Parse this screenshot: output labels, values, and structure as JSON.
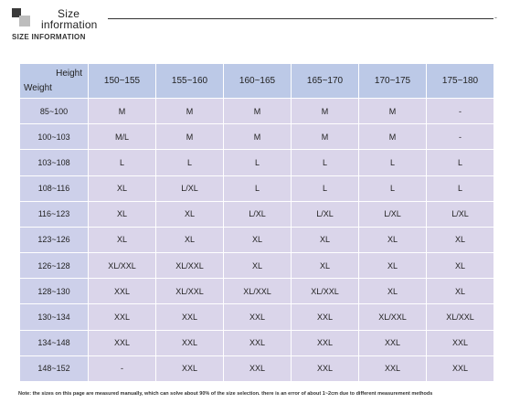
{
  "header": {
    "title_line1": "Size",
    "title_line2": "information",
    "subtitle": "SIZE INFORMATION",
    "mark": "-"
  },
  "table": {
    "corner": {
      "height_label": "Height",
      "weight_label": "Weight"
    },
    "columns": [
      "150~155",
      "155~160",
      "160~165",
      "165~170",
      "170~175",
      "175~180"
    ],
    "rows": [
      {
        "weight": "85~100",
        "sizes": [
          "M",
          "M",
          "M",
          "M",
          "M",
          "-"
        ]
      },
      {
        "weight": "100~103",
        "sizes": [
          "M/L",
          "M",
          "M",
          "M",
          "M",
          "-"
        ]
      },
      {
        "weight": "103~108",
        "sizes": [
          "L",
          "L",
          "L",
          "L",
          "L",
          "L"
        ]
      },
      {
        "weight": "108~116",
        "sizes": [
          "XL",
          "L/XL",
          "L",
          "L",
          "L",
          "L"
        ]
      },
      {
        "weight": "116~123",
        "sizes": [
          "XL",
          "XL",
          "L/XL",
          "L/XL",
          "L/XL",
          "L/XL"
        ]
      },
      {
        "weight": "123~126",
        "sizes": [
          "XL",
          "XL",
          "XL",
          "XL",
          "XL",
          "XL"
        ]
      },
      {
        "weight": "126~128",
        "sizes": [
          "XL/XXL",
          "XL/XXL",
          "XL",
          "XL",
          "XL",
          "XL"
        ]
      },
      {
        "weight": "128~130",
        "sizes": [
          "XXL",
          "XL/XXL",
          "XL/XXL",
          "XL/XXL",
          "XL",
          "XL"
        ]
      },
      {
        "weight": "130~134",
        "sizes": [
          "XXL",
          "XXL",
          "XXL",
          "XXL",
          "XL/XXL",
          "XL/XXL"
        ]
      },
      {
        "weight": "134~148",
        "sizes": [
          "XXL",
          "XXL",
          "XXL",
          "XXL",
          "XXL",
          "XXL"
        ]
      },
      {
        "weight": "148~152",
        "sizes": [
          "-",
          "XXL",
          "XXL",
          "XXL",
          "XXL",
          "XXL"
        ]
      }
    ]
  },
  "note": "Note: the sizes on this page are measured manually, which can solve about 90% of the size selection. there is an error of about 1~2cm due to different measurement methods"
}
